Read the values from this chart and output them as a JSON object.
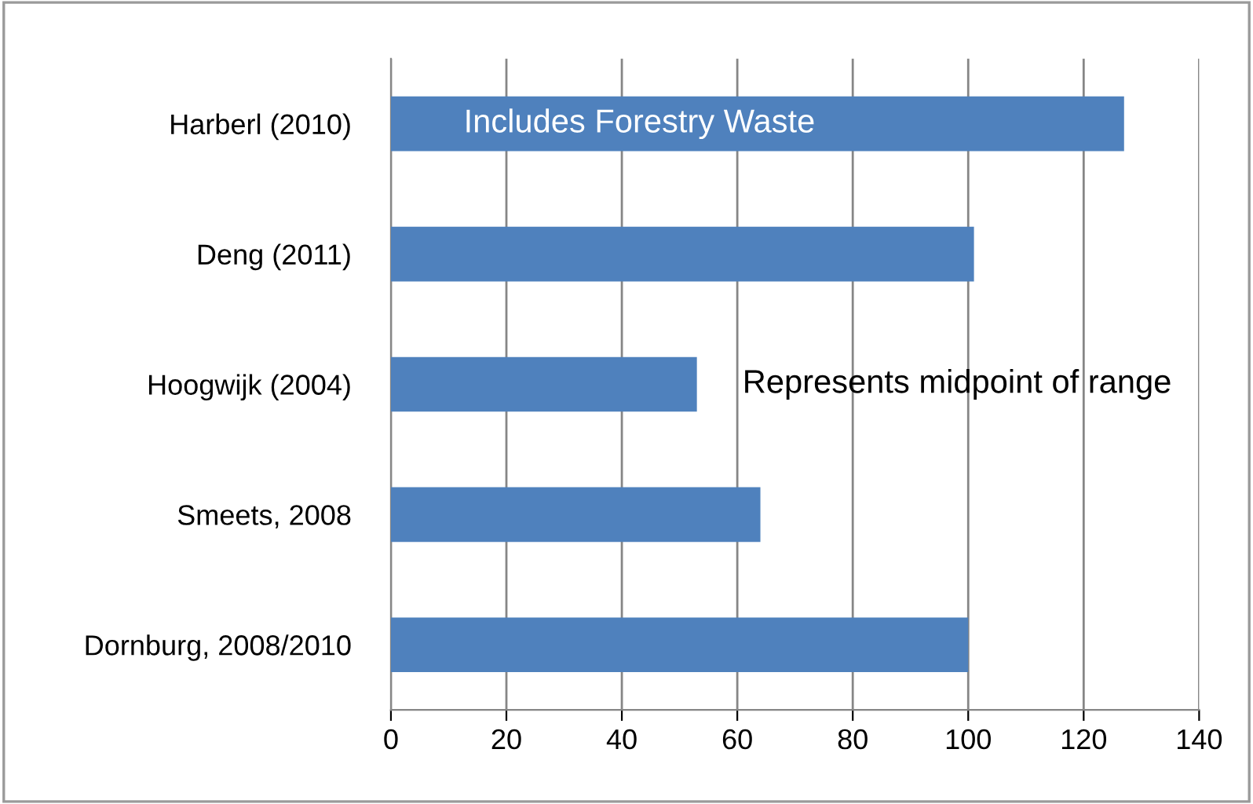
{
  "chart_data": {
    "type": "bar",
    "orientation": "horizontal",
    "categories": [
      "Harberl (2010)",
      "Deng (2011)",
      "Hoogwijk (2004)",
      "Smeets, 2008",
      "Dornburg, 2008/2010"
    ],
    "values": [
      127,
      101,
      53,
      64,
      100
    ],
    "color": "#4f81bd",
    "xlim": [
      0,
      140
    ],
    "xticks": [
      0,
      20,
      40,
      60,
      80,
      100,
      120,
      140
    ],
    "grid": "x",
    "annotations": [
      "Includes Forestry Waste",
      "Represents midpoint of range"
    ]
  }
}
